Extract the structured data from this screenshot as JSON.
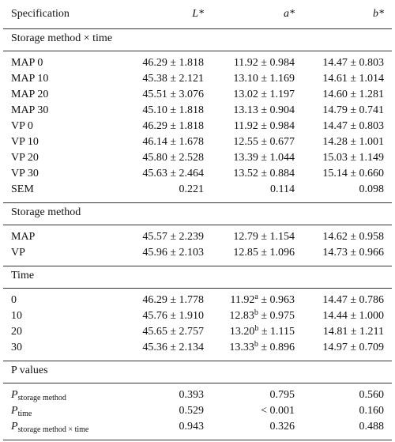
{
  "table": {
    "header": [
      "Specification",
      "L*",
      "a*",
      "b*"
    ],
    "sections": [
      {
        "title": "Storage method × time",
        "rows": [
          [
            "MAP 0",
            "46.29 ± 1.818",
            "11.92 ± 0.984",
            "14.47 ± 0.803"
          ],
          [
            "MAP 10",
            "45.38 ± 2.121",
            "13.10 ± 1.169",
            "14.61 ± 1.014"
          ],
          [
            "MAP 20",
            "45.51 ± 3.076",
            "13.02 ± 1.197",
            "14.60 ± 1.281"
          ],
          [
            "MAP 30",
            "45.10 ± 1.818",
            "13.13 ± 0.904",
            "14.79 ± 0.741"
          ],
          [
            "VP 0",
            "46.29 ± 1.818",
            "11.92 ± 0.984",
            "14.47 ± 0.803"
          ],
          [
            "VP 10",
            "46.14 ± 1.678",
            "12.55 ± 0.677",
            "14.28 ± 1.001"
          ],
          [
            "VP 20",
            "45.80 ± 2.528",
            "13.39 ± 1.044",
            "15.03 ± 1.149"
          ],
          [
            "VP 30",
            "45.63 ± 2.464",
            "13.52 ± 0.884",
            "15.14 ± 0.660"
          ],
          [
            "SEM",
            "0.221",
            "0.114",
            "0.098"
          ]
        ]
      },
      {
        "title": "Storage method",
        "rows": [
          [
            "MAP",
            "45.57 ± 2.239",
            "12.79 ± 1.154",
            "14.62 ± 0.958"
          ],
          [
            "VP",
            "45.96 ± 2.103",
            "12.85 ± 1.096",
            "14.73 ± 0.966"
          ]
        ]
      },
      {
        "title": "Time",
        "rows": [
          [
            "0",
            "46.29 ± 1.778",
            {
              "text": "11.92",
              "sup": "a",
              "rest": " ± 0.963"
            },
            "14.47 ± 0.786"
          ],
          [
            "10",
            "45.76 ± 1.910",
            {
              "text": "12.83",
              "sup": "b",
              "rest": " ± 0.975"
            },
            "14.44 ± 1.000"
          ],
          [
            "20",
            "45.65 ± 2.757",
            {
              "text": "13.20",
              "sup": "b",
              "rest": " ± 1.115"
            },
            "14.81 ± 1.211"
          ],
          [
            "30",
            "45.36 ± 2.134",
            {
              "text": "13.33",
              "sup": "b",
              "rest": " ± 0.896"
            },
            "14.97 ± 0.709"
          ]
        ]
      },
      {
        "title": "P values",
        "rows": [
          [
            {
              "text": "P",
              "sub": "storage method"
            },
            "0.393",
            "0.795",
            "0.560"
          ],
          [
            {
              "text": "P",
              "sub": "time"
            },
            "0.529",
            "< 0.001",
            "0.160"
          ],
          [
            {
              "text": "P",
              "sub": "storage method × time"
            },
            "0.943",
            "0.326",
            "0.488"
          ]
        ]
      }
    ]
  }
}
